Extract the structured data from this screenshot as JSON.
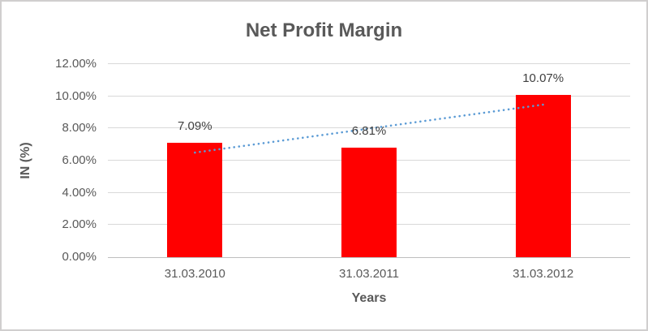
{
  "chart_data": {
    "type": "bar",
    "title": "Net Profit Margin",
    "categories": [
      "31.03.2010",
      "31.03.2011",
      "31.03.2012"
    ],
    "values": [
      7.09,
      6.81,
      10.07
    ],
    "data_labels": [
      "7.09%",
      "6.81%",
      "10.07%"
    ],
    "xlabel": "Years",
    "ylabel": "IN (%)",
    "ylim": [
      0,
      12
    ],
    "ytick_step": 2,
    "ytick_labels": [
      "0.00%",
      "2.00%",
      "4.00%",
      "6.00%",
      "8.00%",
      "10.00%",
      "12.00%"
    ],
    "grid": true,
    "legend": "none",
    "trendline": {
      "type": "linear",
      "style": "dotted",
      "start_value": 6.5,
      "end_value": 9.48
    },
    "colors": {
      "bar": "#FF0000",
      "trendline": "#5B9BD5",
      "title_text": "#595959",
      "axis_text": "#595959",
      "data_label_text": "#404040",
      "gridline": "#D9D9D9",
      "axis_line": "#BFBFBF",
      "background": "#FFFFFF",
      "frame_border": "#D0CECE"
    }
  }
}
